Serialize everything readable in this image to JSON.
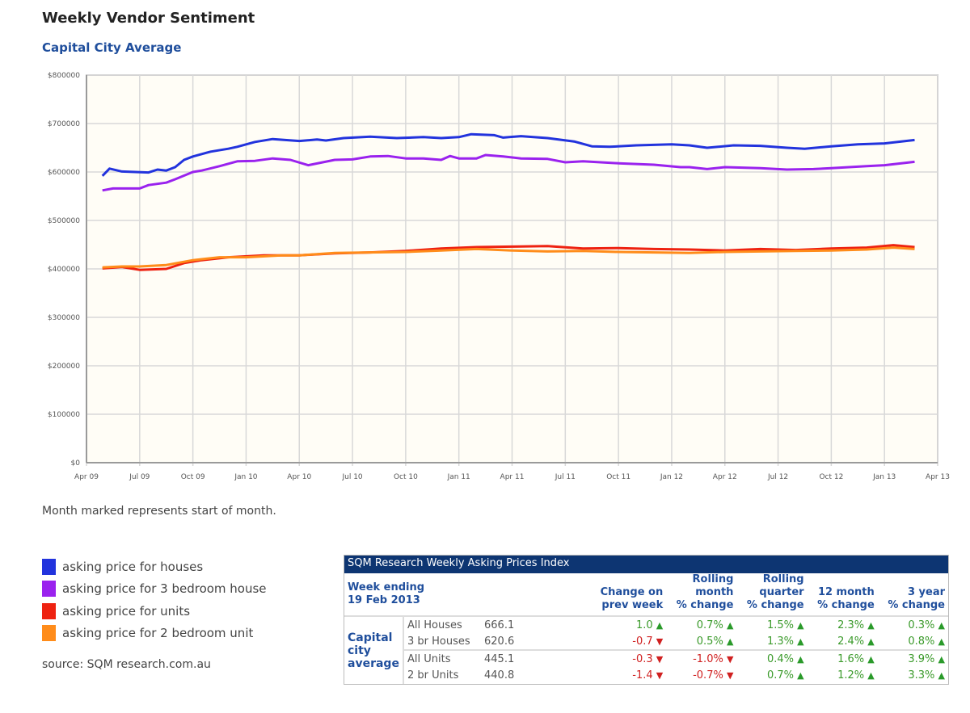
{
  "title": "Weekly Vendor Sentiment",
  "subtitle": "Capital City Average",
  "note": "Month marked represents start of month.",
  "source": "source: SQM research.com.au",
  "chart_data": {
    "type": "line",
    "title": "Weekly Vendor Sentiment",
    "subtitle": "Capital City Average",
    "x_unit": "months since Apr 2009",
    "xlim": [
      0,
      48
    ],
    "ylim": [
      0,
      800000
    ],
    "grid": true,
    "legend_placement": "bottom-left",
    "x_ticks": [
      {
        "m": 0,
        "label": "Apr 09"
      },
      {
        "m": 3,
        "label": "Jul 09"
      },
      {
        "m": 6,
        "label": "Oct 09"
      },
      {
        "m": 9,
        "label": "Jan 10"
      },
      {
        "m": 12,
        "label": "Apr 10"
      },
      {
        "m": 15,
        "label": "Jul 10"
      },
      {
        "m": 18,
        "label": "Oct 10"
      },
      {
        "m": 21,
        "label": "Jan 11"
      },
      {
        "m": 24,
        "label": "Apr 11"
      },
      {
        "m": 27,
        "label": "Jul 11"
      },
      {
        "m": 30,
        "label": "Oct 11"
      },
      {
        "m": 33,
        "label": "Jan 12"
      },
      {
        "m": 36,
        "label": "Apr 12"
      },
      {
        "m": 39,
        "label": "Jul 12"
      },
      {
        "m": 42,
        "label": "Oct 12"
      },
      {
        "m": 45,
        "label": "Jan 13"
      },
      {
        "m": 48,
        "label": "Apr 13"
      }
    ],
    "y_ticks": [
      {
        "v": 0,
        "label": "$0"
      },
      {
        "v": 100000,
        "label": "$100000"
      },
      {
        "v": 200000,
        "label": "$200000"
      },
      {
        "v": 300000,
        "label": "$300000"
      },
      {
        "v": 400000,
        "label": "$400000"
      },
      {
        "v": 500000,
        "label": "$500000"
      },
      {
        "v": 600000,
        "label": "$600000"
      },
      {
        "v": 700000,
        "label": "$700000"
      },
      {
        "v": 800000,
        "label": "$800000"
      }
    ],
    "series": [
      {
        "name": "asking price for houses",
        "color": "#2233dd",
        "x": [
          0.9,
          1.3,
          2,
          3.5,
          4,
          4.5,
          5,
          5.5,
          6,
          7,
          8,
          8.5,
          9.5,
          10.5,
          12,
          13,
          13.5,
          14.5,
          16,
          17.5,
          19,
          20,
          21,
          21.7,
          23,
          23.5,
          24.5,
          26,
          27.5,
          28.5,
          29.5,
          31,
          33,
          34,
          35,
          36.5,
          38,
          39.5,
          40.5,
          42,
          43.5,
          45,
          46.7
        ],
        "y": [
          592000,
          607000,
          601000,
          599000,
          605000,
          603000,
          610000,
          625000,
          632000,
          642000,
          648000,
          652000,
          662000,
          668000,
          664000,
          667000,
          665000,
          670000,
          673000,
          670000,
          672000,
          670000,
          672000,
          678000,
          676000,
          671000,
          674000,
          670000,
          663000,
          653000,
          652000,
          655000,
          657000,
          655000,
          650000,
          655000,
          654000,
          650000,
          648000,
          653000,
          657000,
          659000,
          666000
        ]
      },
      {
        "name": "asking price for 3 bedroom house",
        "color": "#9a22ee",
        "x": [
          0.9,
          1.5,
          3,
          3.5,
          4.5,
          5,
          6,
          6.5,
          7.5,
          8.5,
          9.5,
          10.5,
          11.5,
          12.5,
          14,
          15,
          16,
          17,
          18,
          19,
          20,
          20.5,
          21,
          22,
          22.5,
          23.5,
          24.5,
          26,
          27,
          28,
          30,
          32,
          33.5,
          34,
          35,
          36,
          38,
          39.5,
          41,
          42,
          44,
          45,
          46.7
        ],
        "y": [
          562000,
          566000,
          566000,
          573000,
          578000,
          585000,
          600000,
          603000,
          612000,
          622000,
          623000,
          628000,
          625000,
          614000,
          625000,
          626000,
          632000,
          633000,
          628000,
          628000,
          625000,
          633000,
          628000,
          628000,
          635000,
          632000,
          628000,
          627000,
          620000,
          622000,
          618000,
          615000,
          610000,
          610000,
          606000,
          610000,
          608000,
          605000,
          606000,
          608000,
          612000,
          614000,
          621000
        ]
      },
      {
        "name": "asking price for units",
        "color": "#ee2211",
        "x": [
          0.9,
          2,
          3,
          4.5,
          5.5,
          6.5,
          8,
          10,
          12,
          14,
          16,
          18,
          20,
          22,
          24,
          26,
          28,
          30,
          32,
          34,
          36,
          38,
          40,
          42,
          44,
          45.5,
          46.7
        ],
        "y": [
          401000,
          404000,
          398000,
          400000,
          412000,
          418000,
          424000,
          428000,
          428000,
          432000,
          434000,
          437000,
          442000,
          445000,
          446000,
          447000,
          442000,
          443000,
          441000,
          440000,
          438000,
          441000,
          439000,
          442000,
          444000,
          449000,
          445000
        ]
      },
      {
        "name": "asking price for 2 bedroom unit",
        "color": "#ff8c1a",
        "x": [
          0.9,
          2,
          3,
          4.5,
          6,
          7.5,
          9,
          11,
          12,
          14,
          16,
          18,
          20,
          22,
          24,
          26,
          28,
          30,
          32,
          34,
          36,
          38,
          40,
          42,
          44,
          45.5,
          46.7
        ],
        "y": [
          403000,
          405000,
          405000,
          408000,
          418000,
          424000,
          424000,
          428000,
          428000,
          433000,
          434000,
          435000,
          438000,
          441000,
          438000,
          436000,
          437000,
          435000,
          434000,
          433000,
          435000,
          436000,
          437000,
          438000,
          440000,
          444000,
          441000
        ]
      }
    ]
  },
  "table": {
    "title": "SQM Research Weekly Asking Prices Index",
    "week_label": "Week ending",
    "week_date": "19 Feb 2013",
    "headers": [
      [
        "",
        "Change on",
        "prev week"
      ],
      [
        "Rolling",
        "month",
        "% change"
      ],
      [
        "Rolling",
        "quarter",
        "% change"
      ],
      [
        "",
        "12 month",
        "% change"
      ],
      [
        "",
        "3 year",
        "% change"
      ]
    ],
    "group_label": [
      "Capital",
      "city",
      "average"
    ],
    "rows": [
      {
        "name": "All Houses",
        "index": "666.1",
        "cells": [
          {
            "v": "1.0",
            "d": "up"
          },
          {
            "v": "0.7%",
            "d": "up"
          },
          {
            "v": "1.5%",
            "d": "up"
          },
          {
            "v": "2.3%",
            "d": "up"
          },
          {
            "v": "0.3%",
            "d": "up"
          }
        ]
      },
      {
        "name": "3 br Houses",
        "index": "620.6",
        "cells": [
          {
            "v": "-0.7",
            "d": "down"
          },
          {
            "v": "0.5%",
            "d": "up"
          },
          {
            "v": "1.3%",
            "d": "up"
          },
          {
            "v": "2.4%",
            "d": "up"
          },
          {
            "v": "0.8%",
            "d": "up"
          }
        ]
      },
      {
        "name": "All Units",
        "index": "445.1",
        "cells": [
          {
            "v": "-0.3",
            "d": "down"
          },
          {
            "v": "-1.0%",
            "d": "down"
          },
          {
            "v": "0.4%",
            "d": "up"
          },
          {
            "v": "1.6%",
            "d": "up"
          },
          {
            "v": "3.9%",
            "d": "up"
          }
        ]
      },
      {
        "name": "2 br Units",
        "index": "440.8",
        "cells": [
          {
            "v": "-1.4",
            "d": "down"
          },
          {
            "v": "-0.7%",
            "d": "down"
          },
          {
            "v": "0.7%",
            "d": "up"
          },
          {
            "v": "1.2%",
            "d": "up"
          },
          {
            "v": "3.3%",
            "d": "up"
          }
        ]
      }
    ]
  }
}
